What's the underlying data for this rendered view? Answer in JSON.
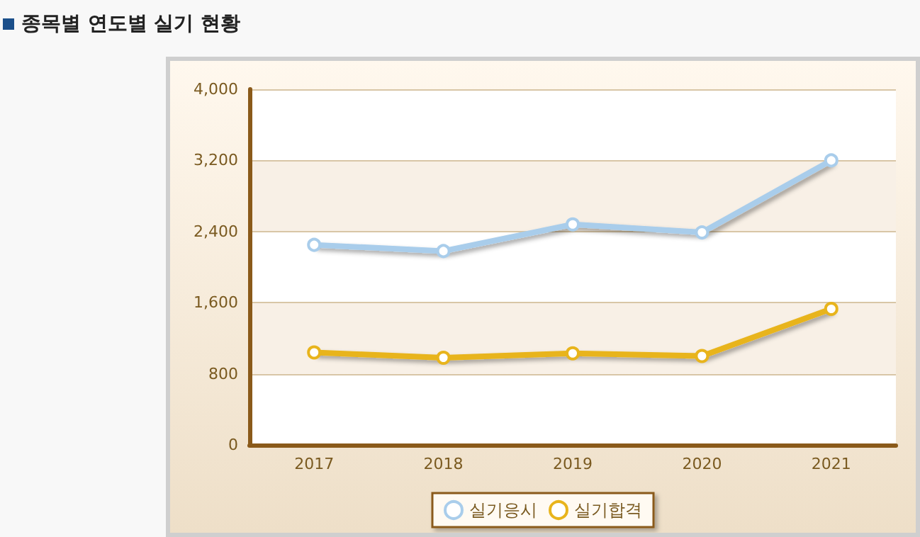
{
  "chart_data": {
    "type": "line",
    "title": "종목별 연도별 실기 현황",
    "categories": [
      "2017",
      "2018",
      "2019",
      "2020",
      "2021"
    ],
    "series": [
      {
        "name": "실기응시",
        "color": "#a9cdeb",
        "values": [
          2250,
          2180,
          2480,
          2390,
          3200
        ]
      },
      {
        "name": "실기합격",
        "color": "#e8b41c",
        "values": [
          1040,
          980,
          1030,
          1000,
          1530
        ]
      }
    ],
    "ylim": [
      0,
      4000
    ],
    "yticks": [
      {
        "value": 0,
        "label": "0"
      },
      {
        "value": 800,
        "label": "800"
      },
      {
        "value": 1600,
        "label": "1,600"
      },
      {
        "value": 2400,
        "label": "2,400"
      },
      {
        "value": 3200,
        "label": "3,200"
      },
      {
        "value": 4000,
        "label": "4,000"
      }
    ],
    "grid": "y",
    "legend": "bottom",
    "marker": "circle",
    "line_style": "solid"
  }
}
